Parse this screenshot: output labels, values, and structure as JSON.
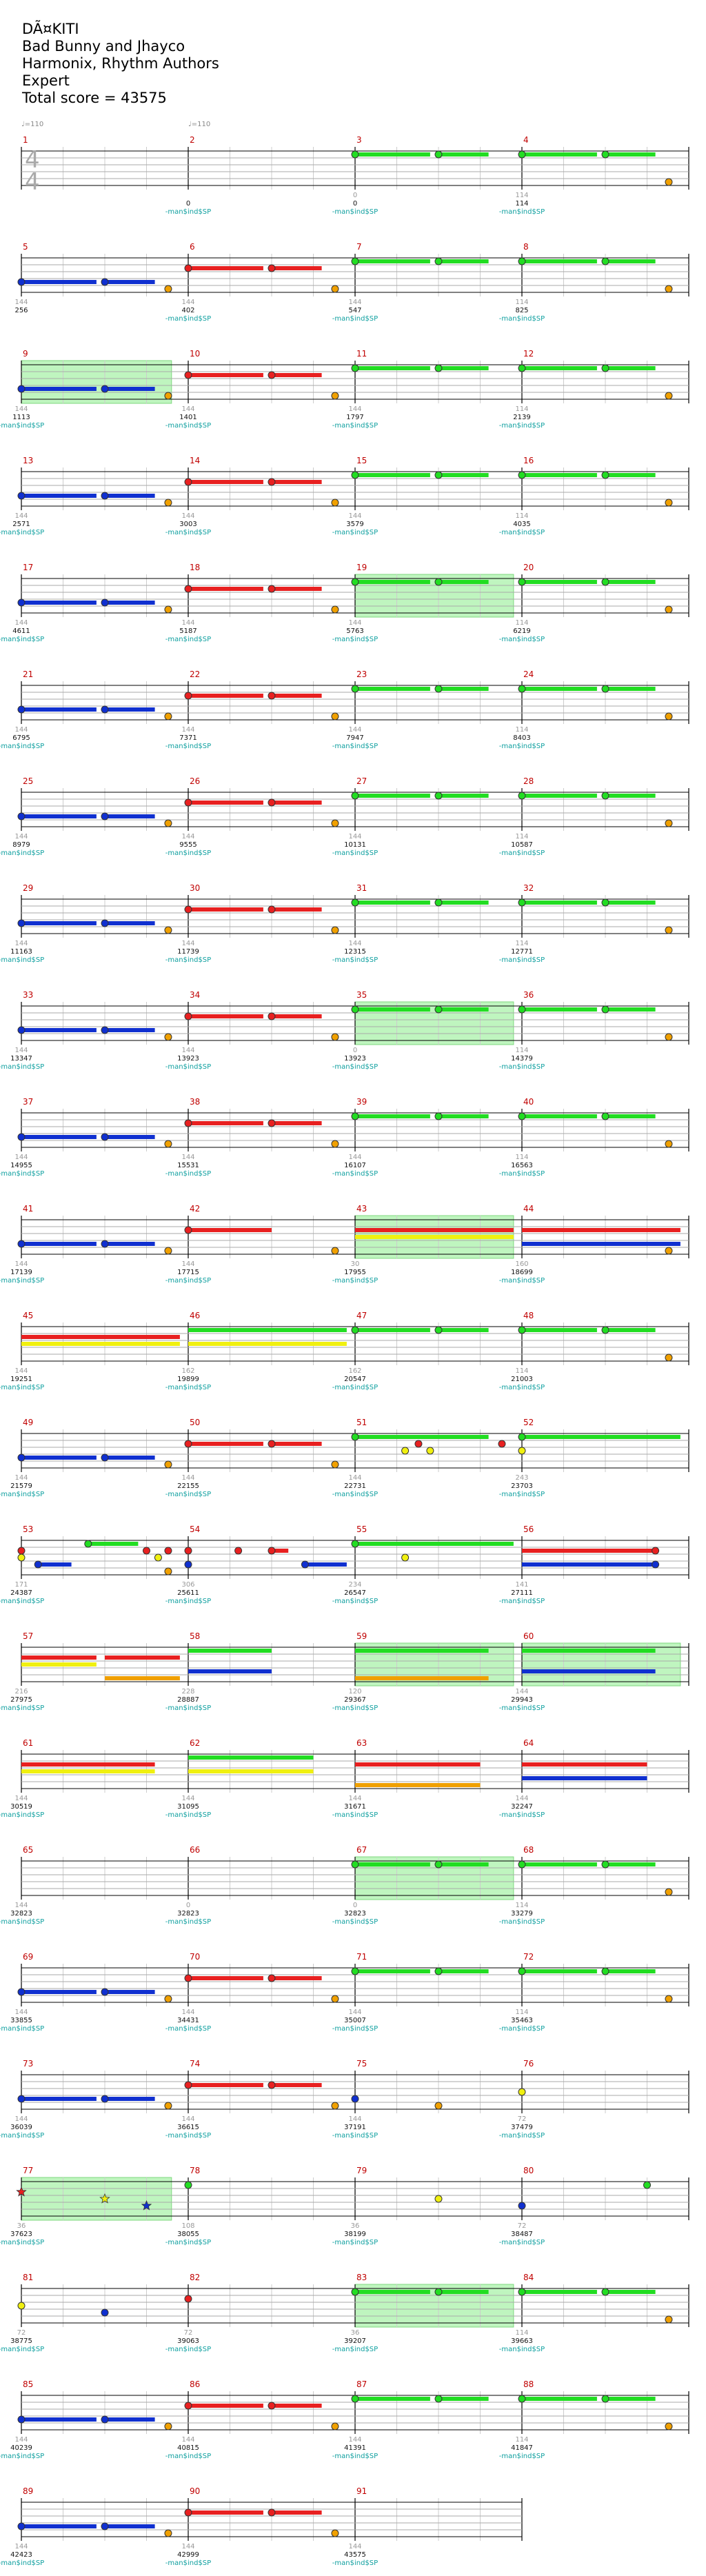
{
  "header": {
    "title": "DÃ¤KITI",
    "artist": "Bad Bunny and Jhayco",
    "authors": "Harmonix, Rhythm Authors",
    "difficulty": "Expert",
    "total_score": "Total score = 43575"
  },
  "tempo_markers": [
    "♩=110",
    "♩=110"
  ],
  "time_signature": {
    "top": "4",
    "bottom": "4"
  },
  "anchor_label": "-man$ind$SP",
  "colors": {
    "green": "#22dd22",
    "red": "#e82020",
    "yellow": "#f0f010",
    "blue": "#1030d0",
    "orange": "#f0a000",
    "overdrive": "#bff5bf",
    "measure_number": "#c00000",
    "anchor_text": "#10a0a0"
  },
  "measures": [
    {
      "n": 1,
      "score": "",
      "gray": "",
      "label": false
    },
    {
      "n": 2,
      "score": "0",
      "gray": "",
      "label": true
    },
    {
      "n": 3,
      "score": "0",
      "gray": "0",
      "label": true
    },
    {
      "n": 4,
      "score": "114",
      "gray": "114",
      "label": true
    },
    {
      "n": 5,
      "score": "256",
      "gray": "144",
      "label": false
    },
    {
      "n": 6,
      "score": "402",
      "gray": "144",
      "label": true
    },
    {
      "n": 7,
      "score": "547",
      "gray": "144",
      "label": true
    },
    {
      "n": 8,
      "score": "825",
      "gray": "114",
      "label": true
    },
    {
      "n": 9,
      "score": "1113",
      "gray": "144",
      "label": true
    },
    {
      "n": 10,
      "score": "1401",
      "gray": "144",
      "label": true
    },
    {
      "n": 11,
      "score": "1797",
      "gray": "144",
      "label": true
    },
    {
      "n": 12,
      "score": "2139",
      "gray": "114",
      "label": true
    },
    {
      "n": 13,
      "score": "2571",
      "gray": "144",
      "label": true
    },
    {
      "n": 14,
      "score": "3003",
      "gray": "144",
      "label": true
    },
    {
      "n": 15,
      "score": "3579",
      "gray": "144",
      "label": true
    },
    {
      "n": 16,
      "score": "4035",
      "gray": "114",
      "label": true
    },
    {
      "n": 17,
      "score": "4611",
      "gray": "144",
      "label": true
    },
    {
      "n": 18,
      "score": "5187",
      "gray": "144",
      "label": true
    },
    {
      "n": 19,
      "score": "5763",
      "gray": "144",
      "label": true
    },
    {
      "n": 20,
      "score": "6219",
      "gray": "114",
      "label": true
    },
    {
      "n": 21,
      "score": "6795",
      "gray": "144",
      "label": true
    },
    {
      "n": 22,
      "score": "7371",
      "gray": "144",
      "label": true
    },
    {
      "n": 23,
      "score": "7947",
      "gray": "144",
      "label": true
    },
    {
      "n": 24,
      "score": "8403",
      "gray": "114",
      "label": true
    },
    {
      "n": 25,
      "score": "8979",
      "gray": "144",
      "label": true
    },
    {
      "n": 26,
      "score": "9555",
      "gray": "144",
      "label": true
    },
    {
      "n": 27,
      "score": "10131",
      "gray": "144",
      "label": true
    },
    {
      "n": 28,
      "score": "10587",
      "gray": "114",
      "label": true
    },
    {
      "n": 29,
      "score": "11163",
      "gray": "144",
      "label": true
    },
    {
      "n": 30,
      "score": "11739",
      "gray": "144",
      "label": true
    },
    {
      "n": 31,
      "score": "12315",
      "gray": "144",
      "label": true
    },
    {
      "n": 32,
      "score": "12771",
      "gray": "114",
      "label": true
    },
    {
      "n": 33,
      "score": "13347",
      "gray": "144",
      "label": true
    },
    {
      "n": 34,
      "score": "13923",
      "gray": "144",
      "label": true
    },
    {
      "n": 35,
      "score": "13923",
      "gray": "0",
      "label": true
    },
    {
      "n": 36,
      "score": "14379",
      "gray": "114",
      "label": true
    },
    {
      "n": 37,
      "score": "14955",
      "gray": "144",
      "label": true
    },
    {
      "n": 38,
      "score": "15531",
      "gray": "144",
      "label": true
    },
    {
      "n": 39,
      "score": "16107",
      "gray": "144",
      "label": true
    },
    {
      "n": 40,
      "score": "16563",
      "gray": "114",
      "label": true
    },
    {
      "n": 41,
      "score": "17139",
      "gray": "144",
      "label": true
    },
    {
      "n": 42,
      "score": "17715",
      "gray": "144",
      "label": true
    },
    {
      "n": 43,
      "score": "17955",
      "gray": "30",
      "label": true
    },
    {
      "n": 44,
      "score": "18699",
      "gray": "160",
      "label": true
    },
    {
      "n": 45,
      "score": "19251",
      "gray": "144",
      "label": true
    },
    {
      "n": 46,
      "score": "19899",
      "gray": "162",
      "label": true
    },
    {
      "n": 47,
      "score": "20547",
      "gray": "162",
      "label": true
    },
    {
      "n": 48,
      "score": "21003",
      "gray": "114",
      "label": true
    },
    {
      "n": 49,
      "score": "21579",
      "gray": "144",
      "label": true
    },
    {
      "n": 50,
      "score": "22155",
      "gray": "144",
      "label": true
    },
    {
      "n": 51,
      "score": "22731",
      "gray": "144",
      "label": true
    },
    {
      "n": 52,
      "score": "23703",
      "gray": "243",
      "label": true
    },
    {
      "n": 53,
      "score": "24387",
      "gray": "171",
      "label": true
    },
    {
      "n": 54,
      "score": "25611",
      "gray": "306",
      "label": true
    },
    {
      "n": 55,
      "score": "26547",
      "gray": "234",
      "label": true
    },
    {
      "n": 56,
      "score": "27111",
      "gray": "141",
      "label": true
    },
    {
      "n": 57,
      "score": "27975",
      "gray": "216",
      "label": true
    },
    {
      "n": 58,
      "score": "28887",
      "gray": "228",
      "label": true
    },
    {
      "n": 59,
      "score": "29367",
      "gray": "120",
      "label": true
    },
    {
      "n": 60,
      "score": "29943",
      "gray": "144",
      "label": true
    },
    {
      "n": 61,
      "score": "30519",
      "gray": "144",
      "label": true
    },
    {
      "n": 62,
      "score": "31095",
      "gray": "144",
      "label": true
    },
    {
      "n": 63,
      "score": "31671",
      "gray": "144",
      "label": true
    },
    {
      "n": 64,
      "score": "32247",
      "gray": "144",
      "label": true
    },
    {
      "n": 65,
      "score": "32823",
      "gray": "144",
      "label": true
    },
    {
      "n": 66,
      "score": "32823",
      "gray": "0",
      "label": true
    },
    {
      "n": 67,
      "score": "32823",
      "gray": "0",
      "label": true
    },
    {
      "n": 68,
      "score": "33279",
      "gray": "114",
      "label": true
    },
    {
      "n": 69,
      "score": "33855",
      "gray": "144",
      "label": true
    },
    {
      "n": 70,
      "score": "34431",
      "gray": "144",
      "label": true
    },
    {
      "n": 71,
      "score": "35007",
      "gray": "144",
      "label": true
    },
    {
      "n": 72,
      "score": "35463",
      "gray": "114",
      "label": true
    },
    {
      "n": 73,
      "score": "36039",
      "gray": "144",
      "label": true
    },
    {
      "n": 74,
      "score": "36615",
      "gray": "144",
      "label": true
    },
    {
      "n": 75,
      "score": "37191",
      "gray": "144",
      "label": true
    },
    {
      "n": 76,
      "score": "37479",
      "gray": "72",
      "label": true
    },
    {
      "n": 77,
      "score": "37623",
      "gray": "36",
      "label": true
    },
    {
      "n": 78,
      "score": "38055",
      "gray": "108",
      "label": true
    },
    {
      "n": 79,
      "score": "38199",
      "gray": "36",
      "label": true
    },
    {
      "n": 80,
      "score": "38487",
      "gray": "72",
      "label": true
    },
    {
      "n": 81,
      "score": "38775",
      "gray": "72",
      "label": true
    },
    {
      "n": 82,
      "score": "39063",
      "gray": "72",
      "label": true
    },
    {
      "n": 83,
      "score": "39207",
      "gray": "36",
      "label": true
    },
    {
      "n": 84,
      "score": "39663",
      "gray": "114",
      "label": true
    },
    {
      "n": 85,
      "score": "40239",
      "gray": "144",
      "label": true
    },
    {
      "n": 86,
      "score": "40815",
      "gray": "144",
      "label": true
    },
    {
      "n": 87,
      "score": "41391",
      "gray": "144",
      "label": true
    },
    {
      "n": 88,
      "score": "41847",
      "gray": "114",
      "label": true
    },
    {
      "n": 89,
      "score": "42423",
      "gray": "144",
      "label": true
    },
    {
      "n": 90,
      "score": "42999",
      "gray": "144",
      "label": true
    },
    {
      "n": 91,
      "score": "43575",
      "gray": "144",
      "label": true
    }
  ],
  "patterns": {
    "A": [
      [
        "blue",
        0,
        0.45,
        "tail"
      ],
      [
        "blue",
        0.5,
        0.8,
        "tail"
      ],
      [
        "orange",
        0.88,
        null,
        "dot"
      ]
    ],
    "B": [
      [
        "red",
        0,
        0.45,
        "tail"
      ],
      [
        "red",
        0.5,
        0.8,
        "tail"
      ],
      [
        "orange",
        0.88,
        null,
        "dot"
      ]
    ],
    "C": [
      [
        "green",
        0,
        0.45,
        "tail"
      ],
      [
        "green",
        0.5,
        0.8,
        "tail"
      ]
    ],
    "D": [
      [
        "green",
        0,
        0.45,
        "tail"
      ],
      [
        "green",
        0.5,
        0.8,
        "tail"
      ],
      [
        "orange",
        0.88,
        null,
        "dot"
      ]
    ]
  },
  "measure_notes": {
    "3": "C",
    "4": "D",
    "5": "A",
    "6": "B",
    "7": "C",
    "8": "D",
    "9": "A",
    "10": "B",
    "11": "C",
    "12": "D",
    "13": "A",
    "14": "B",
    "15": "C",
    "16": "D",
    "17": "A",
    "18": "B",
    "19": "C",
    "20": "D",
    "21": "A",
    "22": "B",
    "23": "C",
    "24": "D",
    "25": "A",
    "26": "B",
    "27": "C",
    "28": "D",
    "29": "A",
    "30": "B",
    "31": "C",
    "32": "D",
    "33": "A",
    "34": "B",
    "35": "C",
    "36": "D",
    "37": "A",
    "38": "B",
    "39": "C",
    "40": "D",
    "41": "A",
    "42": [
      [
        "red",
        0,
        0.5,
        "tail"
      ],
      [
        "orange",
        0.88,
        null,
        "dot"
      ]
    ],
    "43": [
      [
        "red",
        0,
        0.95,
        "bar"
      ],
      [
        "yellow",
        0,
        0.95,
        "bar"
      ]
    ],
    "44": [
      [
        "red",
        0,
        0.95,
        "bar"
      ],
      [
        "blue",
        0,
        0.95,
        "bar"
      ],
      [
        "orange",
        0.88,
        null,
        "dot"
      ]
    ],
    "45": [
      [
        "red",
        0,
        0.95,
        "bar"
      ],
      [
        "yellow",
        0,
        0.95,
        "bar"
      ]
    ],
    "46": [
      [
        "green",
        0,
        0.95,
        "bar"
      ],
      [
        "yellow",
        0,
        0.95,
        "bar"
      ]
    ],
    "47": "C",
    "48": "D",
    "49": "A",
    "50": "B",
    "51": [
      [
        "green",
        0,
        0.8,
        "tail"
      ],
      [
        "yellow",
        0.3,
        null,
        "dot"
      ],
      [
        "red",
        0.38,
        null,
        "dot"
      ],
      [
        "yellow",
        0.45,
        null,
        "dot"
      ],
      [
        "red",
        0.88,
        null,
        "dot"
      ]
    ],
    "52": [
      [
        "green",
        0,
        0.95,
        "tail"
      ],
      [
        "yellow",
        0.0,
        null,
        "dot"
      ]
    ],
    "53": [
      [
        "red",
        0,
        null,
        "dot"
      ],
      [
        "yellow",
        0,
        null,
        "dot"
      ],
      [
        "blue",
        0.1,
        0.3,
        "tail"
      ],
      [
        "green",
        0.4,
        0.7,
        "tail"
      ],
      [
        "red",
        0.75,
        null,
        "dot"
      ],
      [
        "red",
        0.88,
        null,
        "dot"
      ],
      [
        "yellow",
        0.82,
        null,
        "dot"
      ],
      [
        "orange",
        0.88,
        null,
        "dot"
      ]
    ],
    "54": [
      [
        "red",
        0,
        null,
        "dot"
      ],
      [
        "blue",
        0,
        null,
        "dot"
      ],
      [
        "red",
        0.3,
        null,
        "dot"
      ],
      [
        "red",
        0.5,
        0.6,
        "tail"
      ],
      [
        "blue",
        0.7,
        0.95,
        "tail"
      ]
    ],
    "55": [
      [
        "green",
        0,
        0.95,
        "tail"
      ],
      [
        "yellow",
        0.3,
        null,
        "dot"
      ]
    ],
    "56": [
      [
        "red",
        0,
        0.8,
        "bar"
      ],
      [
        "blue",
        0,
        0.8,
        "bar"
      ],
      [
        "red",
        0.8,
        null,
        "dot"
      ],
      [
        "blue",
        0.8,
        null,
        "dot"
      ]
    ],
    "57": [
      [
        "red",
        0,
        0.45,
        "bar"
      ],
      [
        "yellow",
        0,
        0.45,
        "bar"
      ],
      [
        "red",
        0.5,
        0.95,
        "bar"
      ],
      [
        "orange",
        0.5,
        0.95,
        "bar"
      ]
    ],
    "58": [
      [
        "green",
        0,
        0.5,
        "bar"
      ],
      [
        "blue",
        0,
        0.5,
        "bar"
      ]
    ],
    "59": [
      [
        "green",
        0,
        0.8,
        "bar"
      ],
      [
        "orange",
        0,
        0.8,
        "bar"
      ]
    ],
    "60": [
      [
        "green",
        0,
        0.8,
        "bar"
      ],
      [
        "blue",
        0,
        0.8,
        "bar"
      ]
    ],
    "61": [
      [
        "red",
        0,
        0.8,
        "bar"
      ],
      [
        "yellow",
        0,
        0.8,
        "bar"
      ]
    ],
    "62": [
      [
        "green",
        0,
        0.75,
        "bar"
      ],
      [
        "yellow",
        0,
        0.75,
        "bar"
      ]
    ],
    "63": [
      [
        "red",
        0,
        0.75,
        "bar"
      ],
      [
        "orange",
        0,
        0.75,
        "bar"
      ]
    ],
    "64": [
      [
        "red",
        0,
        0.75,
        "bar"
      ],
      [
        "blue",
        0,
        0.75,
        "bar"
      ]
    ],
    "67": "C",
    "68": "D",
    "69": "A",
    "70": "B",
    "71": "C",
    "72": "D",
    "73": "A",
    "74": "B",
    "75": [
      [
        "blue",
        0,
        null,
        "dot"
      ],
      [
        "orange",
        0.5,
        null,
        "dot"
      ]
    ],
    "76": [
      [
        "yellow",
        0,
        null,
        "dot"
      ]
    ],
    "77": [
      [
        "red",
        0,
        null,
        "star"
      ],
      [
        "yellow",
        0.5,
        null,
        "star"
      ],
      [
        "blue",
        0.75,
        null,
        "star"
      ]
    ],
    "78": [
      [
        "green",
        0,
        null,
        "dot"
      ]
    ],
    "79": [
      [
        "yellow",
        0.5,
        null,
        "dot"
      ]
    ],
    "80": [
      [
        "blue",
        0,
        null,
        "dot"
      ],
      [
        "green",
        0.75,
        null,
        "dot"
      ]
    ],
    "81": [
      [
        "yellow",
        0,
        null,
        "dot"
      ],
      [
        "blue",
        0.5,
        null,
        "dot"
      ]
    ],
    "82": [
      [
        "red",
        0,
        null,
        "dot"
      ]
    ],
    "83": "C",
    "84": "D",
    "85": "A",
    "86": "B",
    "87": "C",
    "88": "D",
    "89": "A",
    "90": "B"
  },
  "overdrive_measures": [
    9,
    19,
    35,
    43,
    59,
    60,
    67,
    77,
    83
  ]
}
